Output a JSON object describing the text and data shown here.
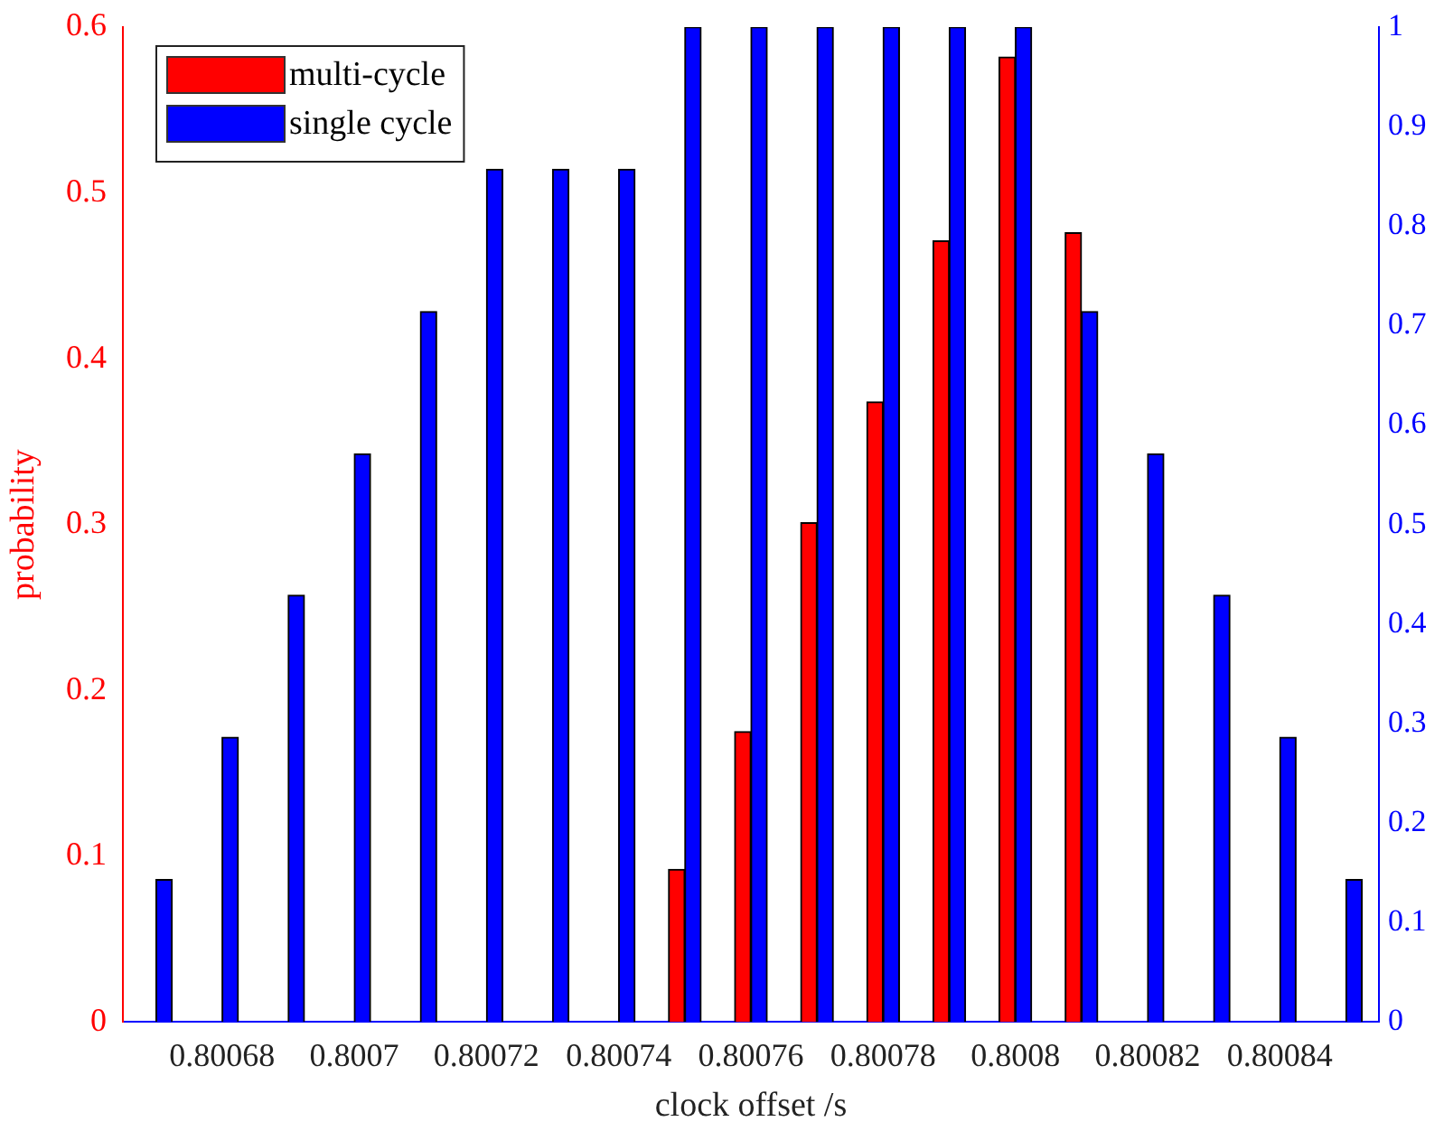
{
  "chart_data": {
    "type": "bar",
    "xlabel": "clock offset /s",
    "ylabel": "probability",
    "x": [
      0.80067,
      0.80068,
      0.80069,
      0.8007,
      0.80071,
      0.80072,
      0.80073,
      0.80074,
      0.80075,
      0.80076,
      0.80077,
      0.80078,
      0.80079,
      0.8008,
      0.80081,
      0.80082,
      0.80083,
      0.80084,
      0.80085
    ],
    "series": [
      {
        "name": "multi-cycle",
        "color": "#ff0000",
        "values": [
          0,
          0,
          0,
          0,
          0,
          0,
          0,
          0,
          0.092,
          0.175,
          0.301,
          0.374,
          0.471,
          0.582,
          0.476,
          0,
          0,
          0,
          0
        ]
      },
      {
        "name": "single cycle",
        "color": "#0000ff",
        "axis": "y2",
        "values": [
          0.143,
          0.286,
          0.429,
          0.571,
          0.714,
          0.857,
          0.857,
          0.857,
          1,
          1,
          1,
          1,
          1,
          1,
          0.714,
          0.571,
          0.429,
          0.286,
          0.143
        ]
      }
    ],
    "xlim": [
      0.800665,
      0.800855
    ],
    "xticks": [
      0.80068,
      0.8007,
      0.80072,
      0.80074,
      0.80076,
      0.80078,
      0.8008,
      0.80082,
      0.80084
    ],
    "ylim": [
      0,
      0.6
    ],
    "yticks": [
      0,
      0.1,
      0.2,
      0.3,
      0.4,
      0.5,
      0.6
    ],
    "y2lim": [
      0,
      1
    ],
    "y2ticks": [
      0,
      0.1,
      0.2,
      0.3,
      0.4,
      0.5,
      0.6,
      0.7,
      0.8,
      0.9,
      1
    ],
    "grid": false,
    "legend": "top left"
  }
}
